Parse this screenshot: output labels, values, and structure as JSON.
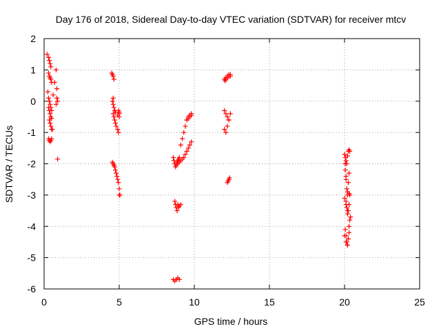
{
  "chart_data": {
    "type": "scatter",
    "title": "Day 176 of 2018, Sidereal Day-to-day VTEC variation (SDTVAR) for receiver mtcv",
    "xlabel": "GPS time / hours",
    "ylabel": "SDTVAR / TECUs",
    "xlim": [
      0,
      25
    ],
    "ylim": [
      -6,
      2
    ],
    "xticks": [
      0,
      5,
      10,
      15,
      20,
      25
    ],
    "yticks": [
      2,
      1,
      0,
      -1,
      -2,
      -3,
      -4,
      -5,
      -6
    ],
    "xtick_labels": [
      "0",
      "5",
      "10",
      "15",
      "20",
      "25"
    ],
    "ytick_labels": [
      "2",
      "1",
      "0",
      "-1",
      "-2",
      "-3",
      "-4",
      "-5",
      "-6"
    ],
    "grid": true,
    "marker": "+",
    "color": "#ff0000",
    "series": [
      {
        "name": "SDTVAR",
        "x": [
          0.2,
          0.3,
          0.35,
          0.4,
          0.45,
          0.3,
          0.35,
          0.4,
          0.45,
          0.5,
          0.25,
          0.3,
          0.35,
          0.4,
          0.45,
          0.5,
          0.3,
          0.35,
          0.4,
          0.45,
          0.5,
          0.35,
          0.4,
          0.45,
          0.5,
          0.55,
          0.3,
          0.35,
          0.4,
          0.45,
          0.5,
          0.6,
          0.7,
          0.8,
          0.85,
          0.9,
          0.8,
          0.85,
          0.9,
          4.5,
          4.55,
          4.6,
          4.65,
          4.6,
          4.55,
          4.6,
          4.65,
          4.7,
          4.75,
          4.6,
          4.65,
          4.7,
          4.75,
          4.8,
          4.9,
          4.95,
          5.0,
          5.0,
          4.95,
          4.9,
          5.0,
          4.55,
          4.6,
          4.65,
          4.7,
          4.75,
          4.8,
          4.85,
          4.9,
          4.95,
          5.0,
          5.0,
          5.05,
          8.6,
          8.65,
          8.7,
          8.75,
          8.8,
          8.85,
          8.9,
          8.95,
          9.0,
          8.7,
          8.75,
          8.8,
          8.85,
          8.9,
          8.95,
          9.0,
          9.1,
          8.6,
          8.7,
          8.8,
          8.9,
          9.0,
          9.1,
          9.2,
          9.3,
          9.4,
          9.5,
          9.6,
          9.7,
          9.8,
          8.9,
          9.0,
          9.1,
          9.2,
          9.3,
          9.4,
          9.5,
          9.6,
          9.7,
          9.8,
          9.5,
          9.6,
          9.7,
          9.8,
          12.0,
          12.1,
          12.2,
          12.3,
          12.4,
          12.05,
          12.1,
          12.2,
          12.3,
          12.4,
          12.0,
          12.1,
          12.2,
          12.3,
          12.4,
          12.0,
          12.1,
          12.2,
          12.3,
          12.2,
          12.3,
          12.35,
          12.25,
          20.0,
          20.05,
          20.1,
          20.15,
          20.2,
          20.25,
          20.3,
          20.35,
          20.05,
          20.1,
          20.15,
          20.2,
          20.25,
          20.3,
          20.1,
          20.15,
          20.2,
          20.25,
          20.3,
          20.35,
          20.05,
          20.1,
          20.15,
          20.2,
          20.25,
          20.3,
          20.0,
          20.1,
          20.2,
          20.3,
          20.35,
          20.4,
          20.05,
          20.1,
          20.2,
          20.3,
          20.0,
          20.1,
          20.2
        ],
        "y": [
          1.5,
          1.4,
          1.3,
          1.2,
          1.1,
          0.9,
          0.8,
          0.75,
          0.7,
          0.6,
          0.3,
          0.1,
          0.0,
          -0.1,
          -0.2,
          -0.3,
          -0.2,
          -0.3,
          -0.4,
          -0.5,
          -0.55,
          -0.6,
          -0.7,
          -0.8,
          -0.9,
          -0.9,
          -1.2,
          -1.25,
          -1.3,
          -1.25,
          -1.2,
          0.2,
          0.6,
          1.0,
          0.4,
          0.0,
          -0.1,
          0.1,
          -1.85,
          0.9,
          0.85,
          0.8,
          0.7,
          0.1,
          0.0,
          -0.1,
          -0.2,
          -0.3,
          -0.35,
          -0.4,
          -0.5,
          -0.6,
          -0.7,
          -0.8,
          -0.9,
          -1.0,
          -0.4,
          -0.35,
          -0.3,
          -0.45,
          -0.5,
          -1.95,
          -2.0,
          -2.05,
          -2.1,
          -2.2,
          -2.3,
          -2.4,
          -2.5,
          -2.6,
          -2.8,
          -3.0,
          -3.0,
          -1.8,
          -1.9,
          -2.0,
          -2.1,
          -2.05,
          -1.95,
          -1.9,
          -1.85,
          -1.8,
          -3.2,
          -3.3,
          -3.4,
          -3.5,
          -3.3,
          -3.4,
          -3.35,
          -3.3,
          -5.7,
          -5.75,
          -5.7,
          -5.65,
          -5.7,
          -1.4,
          -1.2,
          -1.0,
          -0.8,
          -0.6,
          -0.5,
          -0.45,
          -0.4,
          -2.0,
          -1.95,
          -1.9,
          -1.85,
          -1.8,
          -1.7,
          -1.6,
          -1.5,
          -1.4,
          -1.3,
          -0.6,
          -0.55,
          -0.5,
          -0.45,
          0.7,
          0.75,
          0.8,
          0.85,
          0.8,
          0.65,
          0.7,
          0.75,
          0.8,
          0.85,
          -0.3,
          -0.4,
          -0.5,
          -0.6,
          -0.4,
          -0.9,
          -1.0,
          -0.8,
          -0.6,
          -2.6,
          -2.5,
          -2.45,
          -2.55,
          -1.7,
          -1.8,
          -1.9,
          -2.0,
          -1.75,
          -1.6,
          -1.55,
          -1.6,
          -2.2,
          -2.5,
          -2.8,
          -3.0,
          -2.6,
          -2.3,
          -3.2,
          -3.4,
          -3.6,
          -3.5,
          -3.3,
          -3.0,
          -4.1,
          -4.3,
          -4.5,
          -4.6,
          -4.4,
          -4.2,
          -4.3,
          -4.5,
          -4.6,
          -4.0,
          -3.8,
          -3.7,
          -2.0,
          -2.4,
          -2.9,
          -2.95,
          -3.1,
          -3.3,
          -3.5
        ]
      }
    ]
  }
}
